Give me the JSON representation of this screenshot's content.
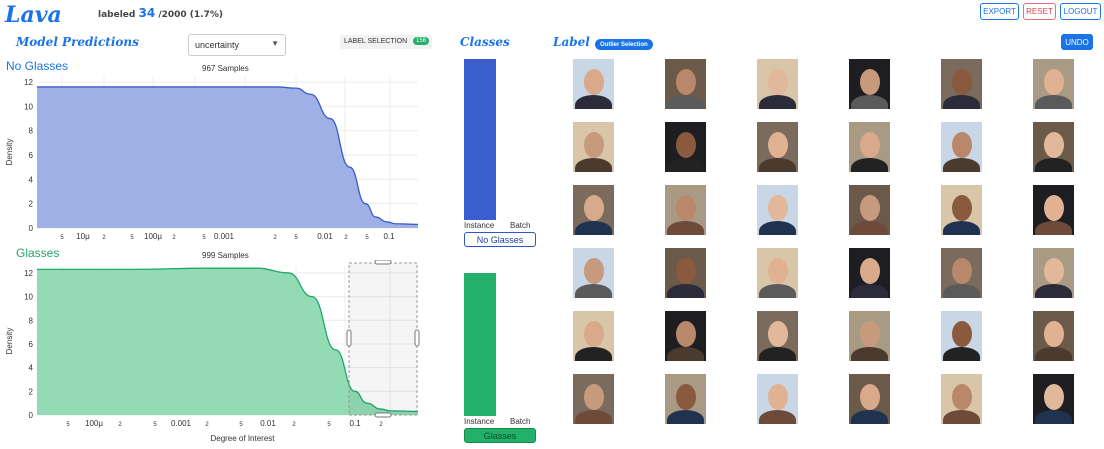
{
  "header": {
    "logo": "Lava",
    "labeled_prefix": "labeled",
    "labeled_count": "34",
    "labeled_total": "/2000 (1.7%)",
    "buttons": {
      "export": "EXPORT",
      "reset": "RESET",
      "logout": "LOGOUT"
    }
  },
  "predictions": {
    "title": "Model Predictions",
    "dropdown_value": "uncertainty",
    "label_selection": "LABEL SELECTION",
    "label_selection_count": "158"
  },
  "chart_data": [
    {
      "type": "area",
      "title": "No Glasses",
      "subtitle": "967 Samples",
      "ylabel": "Density",
      "xlabel": "",
      "x_scale": "log",
      "x_tick_labels": [
        "5",
        "10μ",
        "2",
        "5",
        "100μ",
        "2",
        "5",
        "0.001",
        "2",
        "5",
        "0.01",
        "2",
        "5",
        "0.1",
        "2"
      ],
      "y_ticks": [
        0,
        2,
        4,
        6,
        8,
        10,
        12
      ],
      "ylim": [
        0,
        12.5
      ],
      "x": [
        1e-06,
        1e-05,
        0.0001,
        0.001,
        0.003,
        0.006,
        0.01,
        0.02,
        0.04,
        0.07,
        0.1,
        0.15,
        0.2,
        0.4
      ],
      "y": [
        11.6,
        11.6,
        11.6,
        11.6,
        11.6,
        11.5,
        11.0,
        9.0,
        5.0,
        2.0,
        0.9,
        0.5,
        0.35,
        0.3
      ],
      "color": "#3b5bcc",
      "fill": "#9aace6"
    },
    {
      "type": "area",
      "title": "Glasses",
      "subtitle": "999 Samples",
      "ylabel": "Density",
      "xlabel": "Degree of Interest",
      "x_scale": "log",
      "x_tick_labels": [
        "5",
        "100μ",
        "2",
        "5",
        "0.001",
        "2",
        "5",
        "0.01",
        "2",
        "5",
        "0.1",
        "2"
      ],
      "y_ticks": [
        0,
        2,
        4,
        6,
        8,
        10,
        12
      ],
      "ylim": [
        0,
        12.5
      ],
      "x": [
        1e-05,
        0.0001,
        0.001,
        0.004,
        0.01,
        0.02,
        0.04,
        0.07,
        0.1,
        0.15,
        0.2,
        0.4
      ],
      "y": [
        12.3,
        12.3,
        12.4,
        12.4,
        12.0,
        10.0,
        5.5,
        2.0,
        1.0,
        0.5,
        0.35,
        0.3
      ],
      "color": "#1fa868",
      "fill": "#8cd9b0"
    }
  ],
  "classes": {
    "title": "Classes",
    "items": [
      {
        "instance_label": "Instance",
        "batch_label": "Batch",
        "button": "No Glasses",
        "color": "#3a5fcd"
      },
      {
        "instance_label": "Instance",
        "batch_label": "Batch",
        "button": "Glasses",
        "color": "#22b06a"
      }
    ]
  },
  "label_panel": {
    "title": "Label",
    "outlier_selection": "Outlier Selection",
    "undo": "UNDO"
  }
}
